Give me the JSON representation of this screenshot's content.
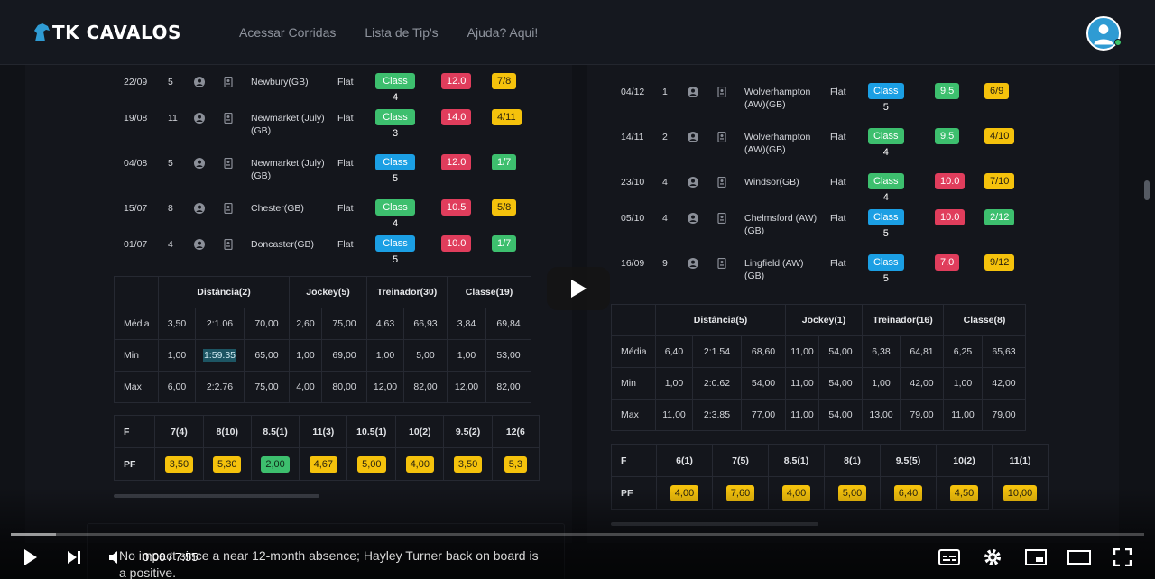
{
  "header": {
    "logo_text": "TK CAVALOS",
    "nav": [
      "Acessar Corridas",
      "Lista de Tip's",
      "Ajuda? Aqui!"
    ],
    "avatar_icon": "user-avatar-icon",
    "online_color": "#3cc46b"
  },
  "left": {
    "races": [
      {
        "date": "22/09",
        "pos": "5",
        "course": "Newbury(GB)",
        "type": "Flat",
        "class": "Class 4",
        "class_color": "green",
        "rating": "12.0",
        "place": "7/8",
        "place_color": "yellow"
      },
      {
        "date": "19/08",
        "pos": "11",
        "course": "Newmarket (July)(GB)",
        "type": "Flat",
        "class": "Class 3",
        "class_color": "green",
        "rating": "14.0",
        "place": "4/11",
        "place_color": "yellow"
      },
      {
        "date": "04/08",
        "pos": "5",
        "course": "Newmarket (July)(GB)",
        "type": "Flat",
        "class": "Class 5",
        "class_color": "blue",
        "rating": "12.0",
        "place": "1/7",
        "place_color": "green"
      },
      {
        "date": "15/07",
        "pos": "8",
        "course": "Chester(GB)",
        "type": "Flat",
        "class": "Class 4",
        "class_color": "green",
        "rating": "10.5",
        "place": "5/8",
        "place_color": "yellow"
      },
      {
        "date": "01/07",
        "pos": "4",
        "course": "Doncaster(GB)",
        "type": "Flat",
        "class": "Class 5",
        "class_color": "blue",
        "rating": "10.0",
        "place": "1/7",
        "place_color": "green"
      }
    ],
    "stats": {
      "headers": [
        "Distância(2)",
        "Jockey(5)",
        "Treinador(30)",
        "Classe(19)"
      ],
      "rows": [
        {
          "label": "Média",
          "values": [
            "3,50",
            "2:1.06",
            "70,00",
            "2,60",
            "75,00",
            "4,63",
            "66,93",
            "3,84",
            "69,84"
          ]
        },
        {
          "label": "Min",
          "values": [
            "1,00",
            "1:59.35",
            "65,00",
            "1,00",
            "69,00",
            "1,00",
            "5,00",
            "1,00",
            "53,00"
          ]
        },
        {
          "label": "Max",
          "values": [
            "6,00",
            "2:2.76",
            "75,00",
            "4,00",
            "80,00",
            "12,00",
            "82,00",
            "12,00",
            "82,00"
          ]
        }
      ]
    },
    "form": {
      "f_label": "F",
      "pf_label": "PF",
      "headers": [
        "7(4)",
        "8(10)",
        "8.5(1)",
        "11(3)",
        "10.5(1)",
        "10(2)",
        "9.5(2)",
        "12(6"
      ],
      "values": [
        "3,50",
        "5,30",
        "2,00",
        "4,67",
        "5,00",
        "4,00",
        "3,50",
        "5,3"
      ],
      "value_colors": [
        "yellow",
        "yellow",
        "green",
        "yellow",
        "yellow",
        "yellow",
        "yellow",
        "yellow"
      ]
    }
  },
  "right": {
    "races": [
      {
        "date": "04/12",
        "pos": "1",
        "course": "Wolverhampton (AW)(GB)",
        "type": "Flat",
        "class": "Class 5",
        "class_color": "blue",
        "rating": "9.5",
        "rating_color": "green",
        "place": "6/9",
        "place_color": "yellow"
      },
      {
        "date": "14/11",
        "pos": "2",
        "course": "Wolverhampton (AW)(GB)",
        "type": "Flat",
        "class": "Class 4",
        "class_color": "green",
        "rating": "9.5",
        "rating_color": "green",
        "place": "4/10",
        "place_color": "yellow"
      },
      {
        "date": "23/10",
        "pos": "4",
        "course": "Windsor(GB)",
        "type": "Flat",
        "class": "Class 4",
        "class_color": "green",
        "rating": "10.0",
        "rating_color": "red",
        "place": "7/10",
        "place_color": "yellow"
      },
      {
        "date": "05/10",
        "pos": "4",
        "course": "Chelmsford (AW)(GB)",
        "type": "Flat",
        "class": "Class 5",
        "class_color": "blue",
        "rating": "10.0",
        "rating_color": "red",
        "place": "2/12",
        "place_color": "green"
      },
      {
        "date": "16/09",
        "pos": "9",
        "course": "Lingfield (AW) (GB)",
        "type": "Flat",
        "class": "Class 5",
        "class_color": "blue",
        "rating": "7.0",
        "rating_color": "red",
        "place": "9/12",
        "place_color": "yellow"
      }
    ],
    "stats": {
      "headers": [
        "Distância(5)",
        "Jockey(1)",
        "Treinador(16)",
        "Classe(8)"
      ],
      "rows": [
        {
          "label": "Média",
          "values": [
            "6,40",
            "2:1.54",
            "68,60",
            "11,00",
            "54,00",
            "6,38",
            "64,81",
            "6,25",
            "65,63"
          ]
        },
        {
          "label": "Min",
          "values": [
            "1,00",
            "2:0.62",
            "54,00",
            "11,00",
            "54,00",
            "1,00",
            "42,00",
            "1,00",
            "42,00"
          ]
        },
        {
          "label": "Max",
          "values": [
            "11,00",
            "2:3.85",
            "77,00",
            "11,00",
            "54,00",
            "13,00",
            "79,00",
            "11,00",
            "79,00"
          ]
        }
      ]
    },
    "form": {
      "f_label": "F",
      "pf_label": "PF",
      "headers": [
        "6(1)",
        "7(5)",
        "8.5(1)",
        "8(1)",
        "9.5(5)",
        "10(2)",
        "11(1)"
      ],
      "values": [
        "4,00",
        "7,60",
        "4,00",
        "5,00",
        "6,40",
        "4,50",
        "10,00"
      ]
    }
  },
  "player": {
    "time": "0:00 / 7:55",
    "caption": "No impact since a near 12-month absence; Hayley Turner back on board is a positive.",
    "progress_loaded_fraction": 0.04,
    "icons": [
      "play-icon",
      "next-icon",
      "volume-icon",
      "subtitles-icon",
      "settings-icon",
      "miniplayer-icon",
      "theater-mode-icon",
      "fullscreen-icon"
    ]
  }
}
